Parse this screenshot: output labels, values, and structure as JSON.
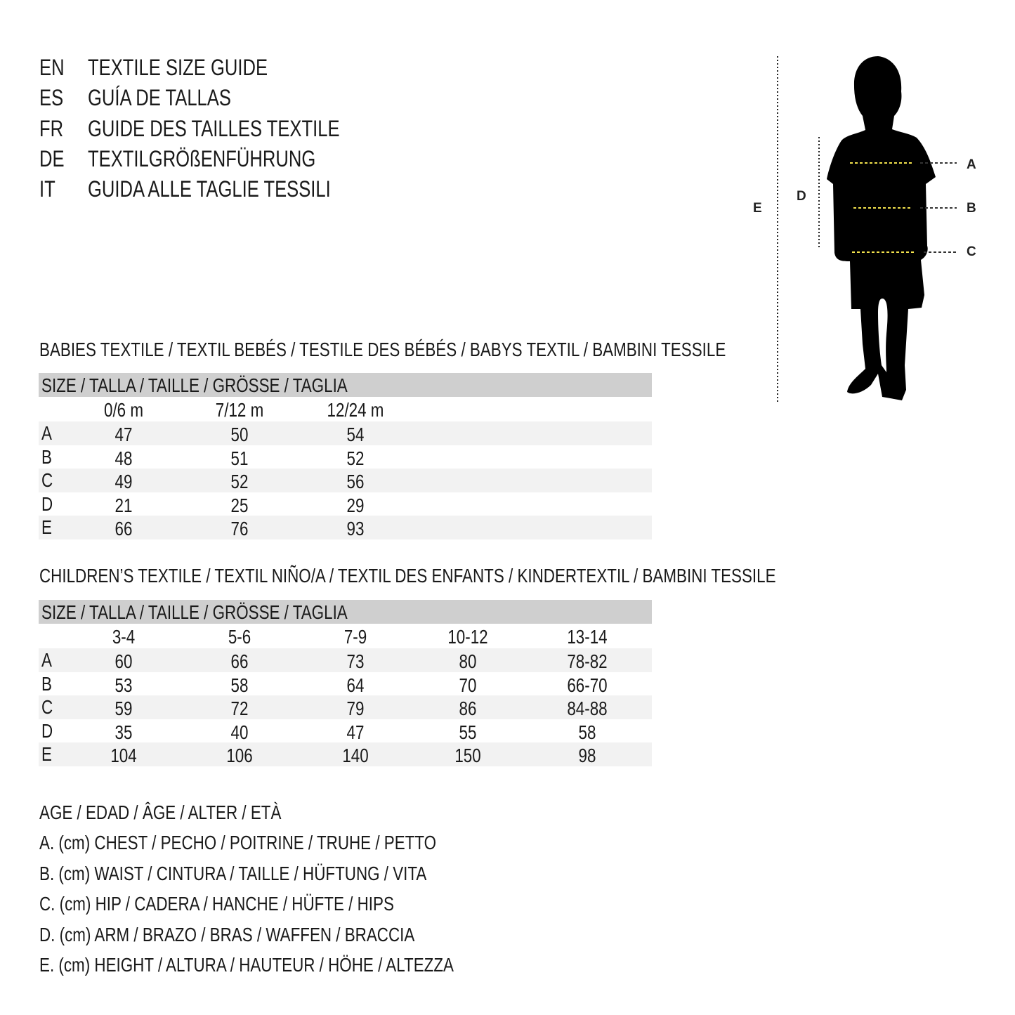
{
  "titles": [
    {
      "code": "EN",
      "text": "TEXTILE SIZE GUIDE"
    },
    {
      "code": "ES",
      "text": "GUÍA DE TALLAS"
    },
    {
      "code": "FR",
      "text": "GUIDE DES TAILLES TEXTILE"
    },
    {
      "code": "DE",
      "text": "TEXTILGRÖßENFÜHRUNG"
    },
    {
      "code": "IT",
      "text": "GUIDA ALLE TAGLIE TESSILI"
    }
  ],
  "figure": {
    "labels": {
      "a": "A",
      "b": "B",
      "c": "C",
      "d": "D",
      "e": "E"
    },
    "measure_line_color": "#f2e14c"
  },
  "babies": {
    "title": "BABIES TEXTILE / TEXTIL BEBÉS / TESTILE DES BÉBÉS / BABYS TEXTIL / BAMBINI TESSILE",
    "header": "SIZE / TALLA / TAILLE / GRÖSSE / TAGLIA",
    "columns": [
      "0/6 m",
      "7/12 m",
      "12/24 m"
    ],
    "rows": [
      {
        "label": "A",
        "values": [
          "47",
          "50",
          "54"
        ]
      },
      {
        "label": "B",
        "values": [
          "48",
          "51",
          "52"
        ]
      },
      {
        "label": "C",
        "values": [
          "49",
          "52",
          "56"
        ]
      },
      {
        "label": "D",
        "values": [
          "21",
          "25",
          "29"
        ]
      },
      {
        "label": "E",
        "values": [
          "66",
          "76",
          "93"
        ]
      }
    ]
  },
  "children": {
    "title": "CHILDREN’S TEXTILE / TEXTIL NIÑO/A / TEXTIL DES ENFANTS / KINDERTEXTIL / BAMBINI TESSILE",
    "header": "SIZE / TALLA / TAILLE / GRÖSSE / TAGLIA",
    "columns": [
      "3-4",
      "5-6",
      "7-9",
      "10-12",
      "13-14"
    ],
    "rows": [
      {
        "label": "A",
        "values": [
          "60",
          "66",
          "73",
          "80",
          "78-82"
        ]
      },
      {
        "label": "B",
        "values": [
          "53",
          "58",
          "64",
          "70",
          "66-70"
        ]
      },
      {
        "label": "C",
        "values": [
          "59",
          "72",
          "79",
          "86",
          "84-88"
        ]
      },
      {
        "label": "D",
        "values": [
          "35",
          "40",
          "47",
          "55",
          "58"
        ]
      },
      {
        "label": "E",
        "values": [
          "104",
          "106",
          "140",
          "150",
          "98"
        ]
      }
    ]
  },
  "legend": [
    "AGE / EDAD / ÂGE / ALTER / ETÀ",
    "A. (cm) CHEST / PECHO / POITRINE / TRUHE / PETTO",
    "B. (cm) WAIST / CINTURA / TAILLE / HÜFTUNG / VITA",
    "C. (cm) HIP / CADERA / HANCHE / HÜFTE / HIPS",
    "D. (cm) ARM / BRAZO / BRAS / WAFFEN / BRACCIA",
    "E. (cm) HEIGHT / ALTURA / HAUTEUR / HÖHE / ALTEZZA"
  ]
}
